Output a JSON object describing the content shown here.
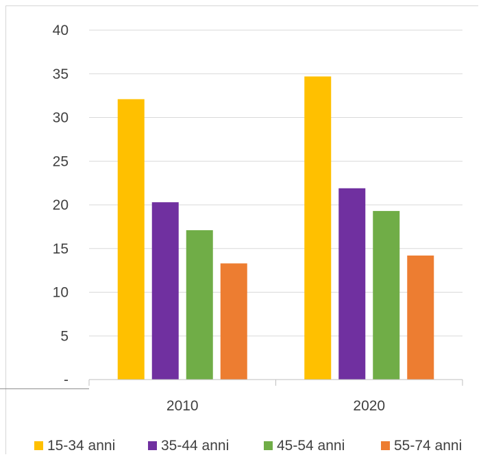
{
  "chart_data": {
    "type": "bar",
    "title": "",
    "xlabel": "",
    "ylabel": "",
    "categories": [
      "2010",
      "2020"
    ],
    "series": [
      {
        "name": "15-34 anni",
        "color": "#ffc000",
        "values": [
          32.1,
          34.7
        ]
      },
      {
        "name": "35-44 anni",
        "color": "#7030a0",
        "values": [
          20.3,
          21.9
        ]
      },
      {
        "name": "45-54 anni",
        "color": "#70ad47",
        "values": [
          17.1,
          19.3
        ]
      },
      {
        "name": "55-74 anni",
        "color": "#ed7d31",
        "values": [
          13.3,
          14.2
        ]
      }
    ],
    "ylim": [
      0,
      40
    ],
    "yticks": [
      {
        "value": 0,
        "label": "-"
      },
      {
        "value": 5,
        "label": "5"
      },
      {
        "value": 10,
        "label": "10"
      },
      {
        "value": 15,
        "label": "15"
      },
      {
        "value": 20,
        "label": "20"
      },
      {
        "value": 25,
        "label": "25"
      },
      {
        "value": 30,
        "label": "30"
      },
      {
        "value": 35,
        "label": "35"
      },
      {
        "value": 40,
        "label": "40"
      }
    ],
    "grid": true,
    "legend_position": "bottom"
  }
}
